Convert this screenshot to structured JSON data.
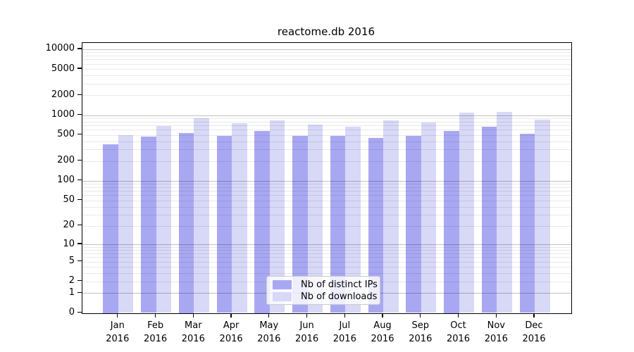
{
  "title": "reactome.db 2016",
  "colors": {
    "distinct_ips": "#a8a8f2",
    "downloads": "#d8d8f7",
    "major_grid": "#c8c8c8",
    "minor_grid": "#ebebeb"
  },
  "legend": {
    "items": [
      {
        "label": "Nb of distinct IPs",
        "color": "#a8a8f2"
      },
      {
        "label": "Nb of downloads",
        "color": "#d8d8f7"
      }
    ]
  },
  "chart_data": {
    "type": "bar",
    "title": "reactome.db 2016",
    "categories": [
      "Jan",
      "Feb",
      "Mar",
      "Apr",
      "May",
      "Jun",
      "Jul",
      "Aug",
      "Sep",
      "Oct",
      "Nov",
      "Dec"
    ],
    "x_tick_year": "2016",
    "series": [
      {
        "name": "Nb of distinct IPs",
        "color": "#a8a8f2",
        "values": [
          360,
          470,
          540,
          480,
          575,
          480,
          480,
          450,
          480,
          575,
          660,
          520
        ]
      },
      {
        "name": "Nb of downloads",
        "color": "#d8d8f7",
        "values": [
          500,
          685,
          905,
          755,
          830,
          720,
          665,
          830,
          770,
          1100,
          1110,
          850
        ]
      }
    ],
    "xlabel": "",
    "ylabel": "",
    "yscale": "log1p",
    "ylim": [
      0,
      13200
    ],
    "yticks": [
      0,
      1,
      2,
      5,
      10,
      20,
      50,
      100,
      200,
      500,
      1000,
      2000,
      5000,
      10000
    ],
    "grid": "both",
    "legend_position": "lower center"
  }
}
